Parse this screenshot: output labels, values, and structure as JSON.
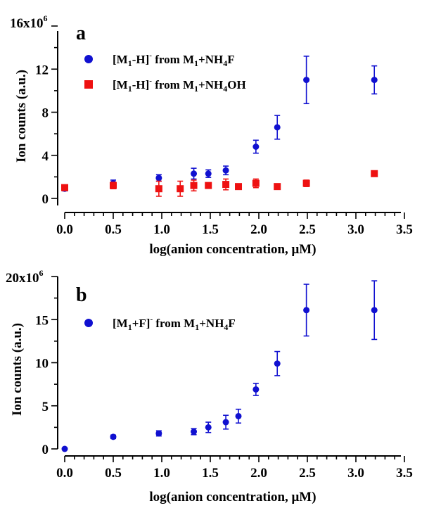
{
  "chart_data": [
    {
      "type": "scatter",
      "panel_label": "a",
      "xlabel": "log(anion concentration, μM)",
      "ylabel": "Ion counts (a.u.)",
      "xlim": [
        0,
        3.5
      ],
      "ylim": [
        0,
        16
      ],
      "x_ticks": [
        "0.0",
        "0.5",
        "1.0",
        "1.5",
        "2.0",
        "2.5",
        "3.0",
        "3.5"
      ],
      "y_ticks": [
        "0",
        "4",
        "8",
        "12"
      ],
      "y_top_label": "16x10",
      "y_top_exponent": "6",
      "legend_placement": "top-left",
      "series": [
        {
          "color": "#1010d0",
          "marker": "circle",
          "legend": {
            "a": "[M",
            "b": "1",
            "c": "-H]",
            "d": "-",
            "e": " from M",
            "f": "1",
            "g": "+NH",
            "h": "4",
            "i": "F"
          },
          "points": [
            {
              "x": 0.0,
              "y": 0.9,
              "err": 0.2
            },
            {
              "x": 0.5,
              "y": 1.4,
              "err": 0.3
            },
            {
              "x": 0.97,
              "y": 1.9,
              "err": 0.3
            },
            {
              "x": 1.33,
              "y": 2.3,
              "err": 0.5
            },
            {
              "x": 1.48,
              "y": 2.3,
              "err": 0.35
            },
            {
              "x": 1.66,
              "y": 2.6,
              "err": 0.4
            },
            {
              "x": 1.97,
              "y": 4.8,
              "err": 0.6
            },
            {
              "x": 2.19,
              "y": 6.6,
              "err": 1.1
            },
            {
              "x": 2.49,
              "y": 11.0,
              "err": 2.2
            },
            {
              "x": 3.19,
              "y": 11.0,
              "err": 1.3
            }
          ]
        },
        {
          "color": "#ee1111",
          "marker": "square",
          "legend": {
            "a": "[M",
            "b": "1",
            "c": "-H]",
            "d": "-",
            "e": " from M",
            "f": "1",
            "g": "+NH",
            "h": "4",
            "i": "OH"
          },
          "points": [
            {
              "x": 0.0,
              "y": 1.0,
              "err": 0.2
            },
            {
              "x": 0.5,
              "y": 1.2,
              "err": 0.3
            },
            {
              "x": 0.97,
              "y": 0.9,
              "err": 0.7
            },
            {
              "x": 1.19,
              "y": 0.9,
              "err": 0.7
            },
            {
              "x": 1.33,
              "y": 1.2,
              "err": 0.5
            },
            {
              "x": 1.48,
              "y": 1.2,
              "err": 0.2
            },
            {
              "x": 1.66,
              "y": 1.3,
              "err": 0.5
            },
            {
              "x": 1.79,
              "y": 1.1,
              "err": 0.1
            },
            {
              "x": 1.97,
              "y": 1.4,
              "err": 0.4
            },
            {
              "x": 2.19,
              "y": 1.1,
              "err": 0.1
            },
            {
              "x": 2.49,
              "y": 1.4,
              "err": 0.3
            },
            {
              "x": 3.19,
              "y": 2.3,
              "err": 0.1
            }
          ]
        }
      ]
    },
    {
      "type": "scatter",
      "panel_label": "b",
      "xlabel": "log(anion concentration, μM)",
      "ylabel": "Ion counts (a.u.)",
      "xlim": [
        0,
        3.5
      ],
      "ylim": [
        0,
        20
      ],
      "x_ticks": [
        "0.0",
        "0.5",
        "1.0",
        "1.5",
        "2.0",
        "2.5",
        "3.0",
        "3.5"
      ],
      "y_ticks": [
        "0",
        "5",
        "10",
        "15"
      ],
      "y_top_label": "20x10",
      "y_top_exponent": "6",
      "legend_placement": "top-left",
      "series": [
        {
          "color": "#1010d0",
          "marker": "circle",
          "legend": {
            "a": "[M",
            "b": "1",
            "c": "+F]",
            "d": "-",
            "e": " from M",
            "f": "1",
            "g": "+NH",
            "h": "4",
            "i": "F"
          },
          "points": [
            {
              "x": 0.0,
              "y": 0.0,
              "err": 0.05
            },
            {
              "x": 0.5,
              "y": 1.4,
              "err": 0.2
            },
            {
              "x": 0.97,
              "y": 1.8,
              "err": 0.3
            },
            {
              "x": 1.33,
              "y": 2.0,
              "err": 0.35
            },
            {
              "x": 1.48,
              "y": 2.5,
              "err": 0.6
            },
            {
              "x": 1.66,
              "y": 3.1,
              "err": 0.8
            },
            {
              "x": 1.79,
              "y": 3.8,
              "err": 0.8
            },
            {
              "x": 1.97,
              "y": 6.9,
              "err": 0.7
            },
            {
              "x": 2.19,
              "y": 9.9,
              "err": 1.4
            },
            {
              "x": 2.49,
              "y": 16.1,
              "err": 3.0
            },
            {
              "x": 3.19,
              "y": 16.1,
              "err": 3.4
            }
          ]
        }
      ]
    }
  ]
}
